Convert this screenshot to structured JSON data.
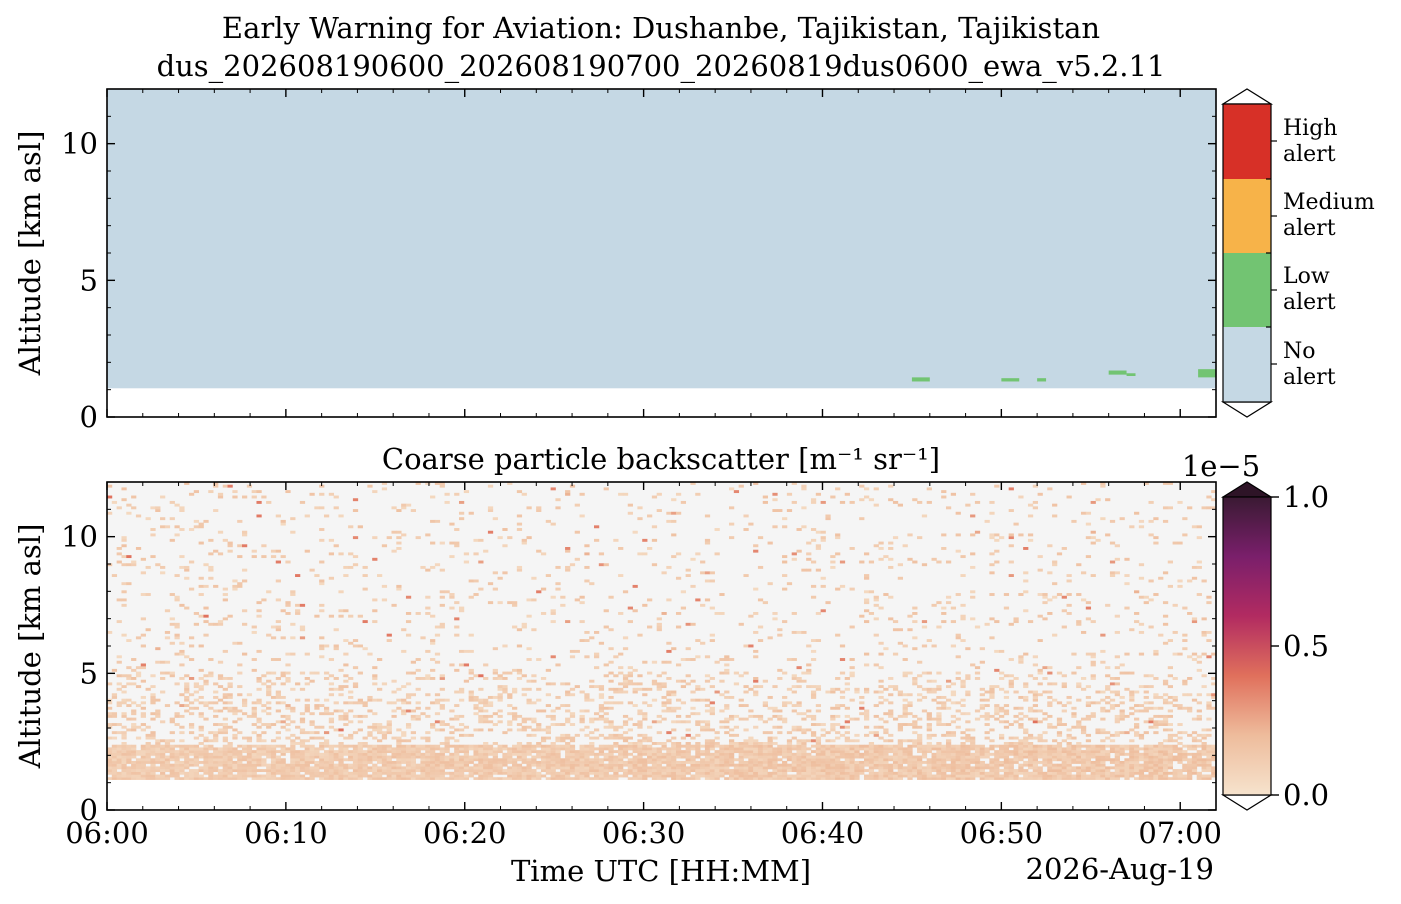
{
  "figure": {
    "title_line1": "Early Warning for Aviation: Dushanbe, Tajikistan, Tajikistan",
    "title_line2": "dus_202608190600_202608190700_20260819dus0600_ewa_v5.2.11",
    "xlabel": "Time UTC [HH:MM]",
    "date_label": "2026-Aug-19"
  },
  "chart_data": [
    {
      "type": "heatmap",
      "title": "",
      "ylabel": "Altitude [km asl]",
      "ylim": [
        0,
        12
      ],
      "yticks": [
        0,
        5,
        10
      ],
      "x_start": "06:00",
      "x_end": "07:02",
      "colors": {
        "no_alert": "#c5d8e4",
        "low_alert": "#72c472",
        "medium_alert": "#f7b349",
        "high_alert": "#d73027"
      },
      "base_altitude_km": 1.05,
      "background_category": "No alert",
      "legend": {
        "categories": [
          "No alert",
          "Low alert",
          "Medium alert",
          "High alert"
        ],
        "labels_line1": [
          "No",
          "Low",
          "Medium",
          "High"
        ],
        "labels_line2": [
          "alert",
          "alert",
          "alert",
          "alert"
        ]
      },
      "low_alert_patches": [
        {
          "t_start": "06:45",
          "t_end": "06:46",
          "alt_min": 1.3,
          "alt_max": 1.45
        },
        {
          "t_start": "06:50",
          "t_end": "06:51",
          "alt_min": 1.3,
          "alt_max": 1.42
        },
        {
          "t_start": "06:52",
          "t_end": "06:52.5",
          "alt_min": 1.3,
          "alt_max": 1.42
        },
        {
          "t_start": "06:56",
          "t_end": "06:57",
          "alt_min": 1.55,
          "alt_max": 1.7
        },
        {
          "t_start": "06:57",
          "t_end": "06:57.5",
          "alt_min": 1.5,
          "alt_max": 1.6
        },
        {
          "t_start": "07:01",
          "t_end": "07:02",
          "alt_min": 1.45,
          "alt_max": 1.75
        }
      ]
    },
    {
      "type": "heatmap",
      "title": "Coarse particle backscatter [m⁻¹ sr⁻¹]",
      "ylabel": "Altitude [km asl]",
      "ylim": [
        0,
        12
      ],
      "yticks": [
        0,
        5,
        10
      ],
      "x_start": "06:00",
      "x_end": "07:02",
      "xticks": [
        "06:00",
        "06:10",
        "06:20",
        "06:30",
        "06:40",
        "06:50",
        "07:00"
      ],
      "colorbar": {
        "min": 0.0,
        "max": 1.0,
        "ticks": [
          0.0,
          0.5,
          1.0
        ],
        "tick_labels": [
          "0.0",
          "0.5",
          "1.0"
        ],
        "scale_label": "1e−5",
        "colormap_stops": [
          "#f6e3cd",
          "#eebc9c",
          "#e0705c",
          "#b22b61",
          "#7a1f6b",
          "#3a1a33"
        ]
      },
      "aerosol_layer": {
        "alt_min": 1.1,
        "alt_max": 2.3,
        "typical_value": 0.12
      },
      "background_color": "#f5f5f5"
    }
  ]
}
